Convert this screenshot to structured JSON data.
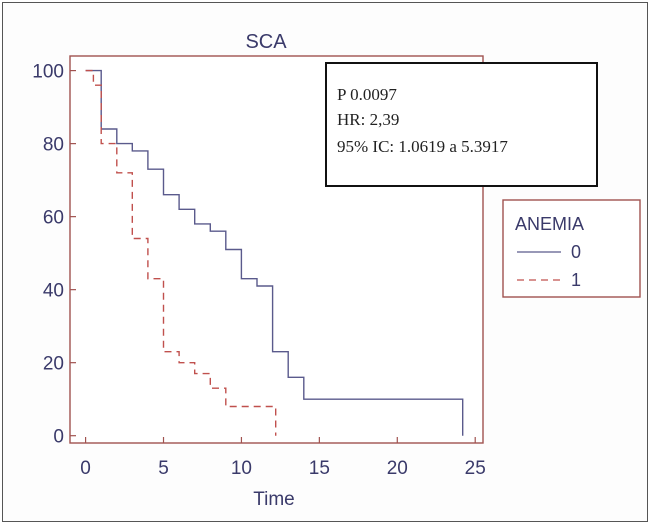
{
  "chart_data": {
    "type": "line",
    "title": "SCA",
    "xlabel": "Time",
    "ylabel": "",
    "xlim": [
      -1,
      25.5
    ],
    "ylim": [
      -2,
      104
    ],
    "xticks": [
      "0",
      "5",
      "10",
      "15",
      "20",
      "25"
    ],
    "yticks": [
      "0",
      "20",
      "40",
      "60",
      "80",
      "100"
    ],
    "grid": false,
    "legend": {
      "title": "ANEMIA",
      "placement": "right",
      "entries": [
        {
          "label": "0",
          "color": "#5a5a8c",
          "dash": "solid"
        },
        {
          "label": "1",
          "color": "#c0504d",
          "dash": "dashed"
        }
      ]
    },
    "series": [
      {
        "name": "0",
        "color": "#5a5a8c",
        "style": "step",
        "x": [
          0,
          1,
          1,
          2,
          2,
          3,
          3,
          4,
          4,
          5,
          5,
          6,
          6,
          7,
          7,
          8,
          8,
          9,
          9,
          10,
          10,
          11,
          11,
          12,
          12,
          13,
          13,
          14,
          14,
          24.2,
          24.2
        ],
        "y": [
          100,
          100,
          84,
          84,
          80,
          80,
          78,
          78,
          73,
          73,
          66,
          66,
          62,
          62,
          58,
          58,
          56,
          56,
          51,
          51,
          43,
          43,
          41,
          41,
          23,
          23,
          16,
          16,
          10,
          10,
          0
        ]
      },
      {
        "name": "1",
        "color": "#c0504d",
        "style": "step",
        "x": [
          0,
          0.5,
          0.5,
          1,
          1,
          2,
          2,
          3,
          3,
          4,
          4,
          5,
          5,
          6,
          6,
          7,
          7,
          8,
          8,
          9,
          9,
          12.2,
          12.2
        ],
        "y": [
          100,
          100,
          96,
          96,
          80,
          80,
          72,
          72,
          54,
          54,
          43,
          43,
          23,
          23,
          20,
          20,
          17,
          17,
          13,
          13,
          8,
          8,
          0
        ]
      }
    ],
    "annotation": {
      "lines": [
        "P 0.0097",
        "HR: 2,39",
        "95% IC: 1.0619 a 5.3917"
      ]
    }
  }
}
